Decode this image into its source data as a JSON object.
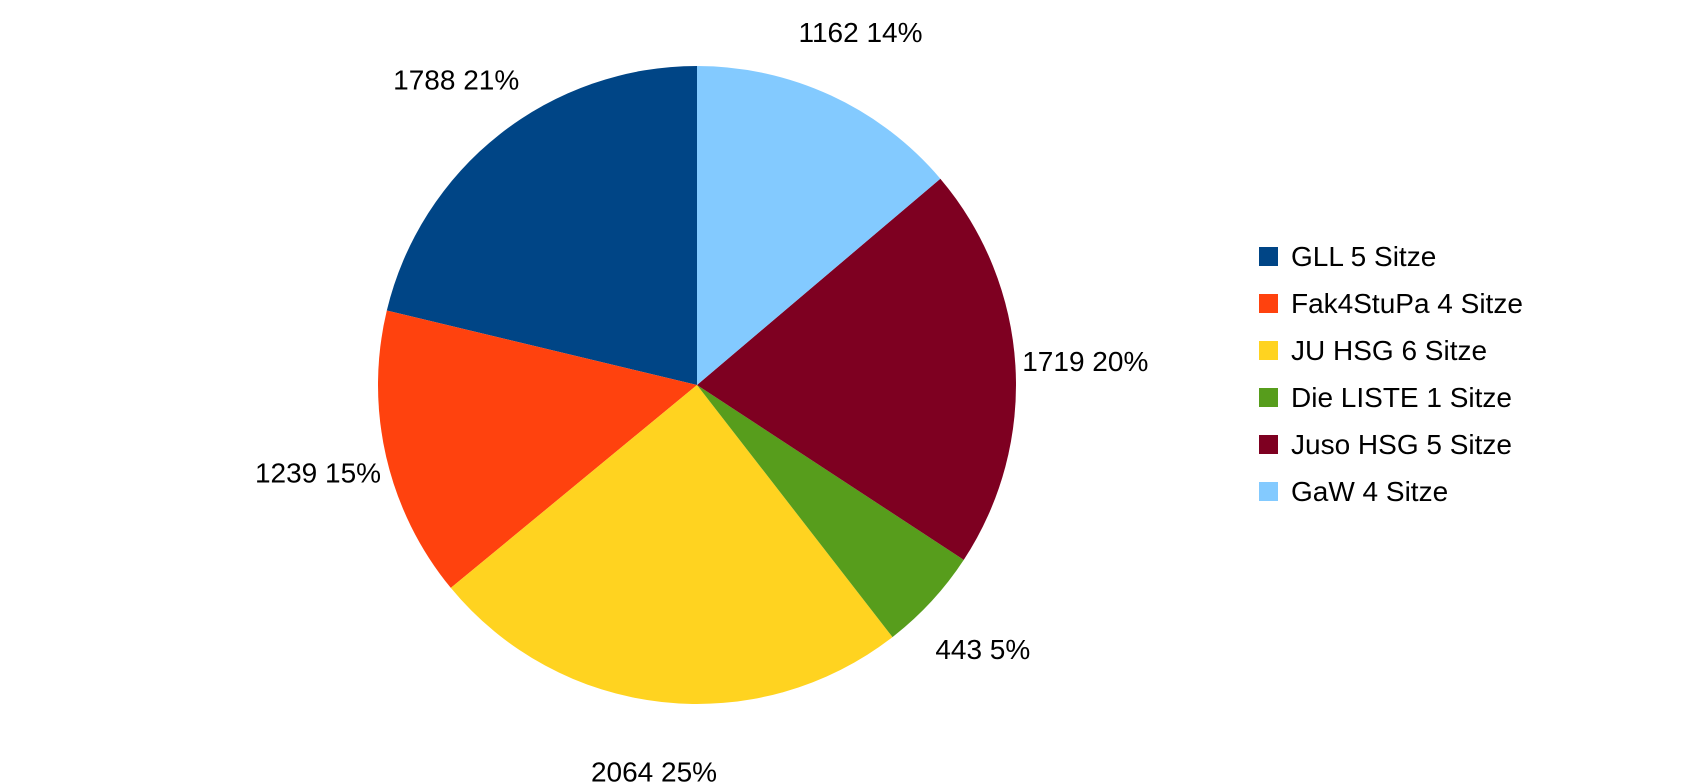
{
  "chart_data": {
    "type": "pie",
    "title": "",
    "legend_position": "right",
    "start_angle_deg": 0,
    "direction": "counterclockwise",
    "slices": [
      {
        "name": "GLL 5 Sitze",
        "value": 1788,
        "percent": "21%",
        "value_label": "1788",
        "color": "#004586"
      },
      {
        "name": "Fak4StuPa 4 Sitze",
        "value": 1239,
        "percent": "15%",
        "value_label": "1239",
        "color": "#ff420e"
      },
      {
        "name": "JU HSG 6 Sitze",
        "value": 2064,
        "percent": "25%",
        "value_label": "2064",
        "color": "#ffd320"
      },
      {
        "name": "Die LISTE 1 Sitze",
        "value": 443,
        "percent": "5%",
        "value_label": "443",
        "color": "#579d1c"
      },
      {
        "name": "Juso HSG 5 Sitze",
        "value": 1719,
        "percent": "20%",
        "value_label": "1719",
        "color": "#7e0021"
      },
      {
        "name": "GaW 4 Sitze",
        "value": 1162,
        "percent": "14%",
        "value_label": "1162",
        "color": "#83caff"
      }
    ]
  }
}
